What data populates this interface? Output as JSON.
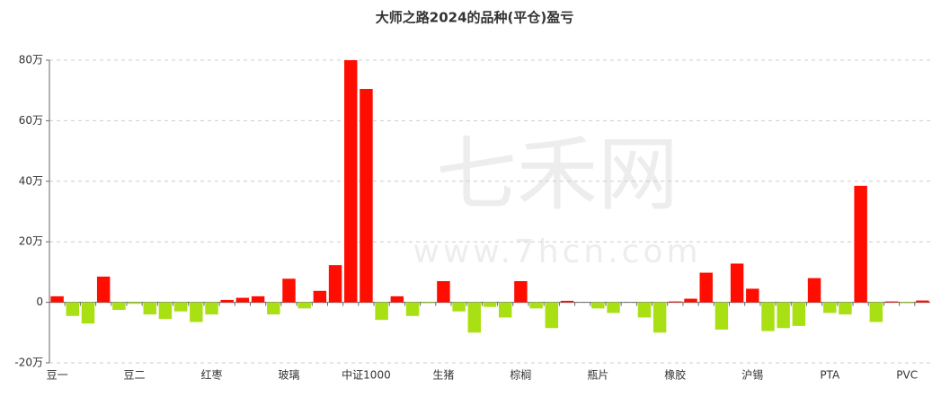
{
  "chart_data": {
    "type": "bar",
    "title": "大师之路2024的品种(平仓)盈亏",
    "watermark": [
      "七禾网",
      "www.7hcn.com"
    ],
    "categories": [
      "豆一",
      null,
      null,
      null,
      null,
      "豆二",
      null,
      null,
      null,
      null,
      "红枣",
      null,
      null,
      null,
      null,
      "玻璃",
      null,
      null,
      null,
      null,
      "中证1000",
      null,
      null,
      null,
      null,
      "生猪",
      null,
      null,
      null,
      null,
      "棕榈",
      null,
      null,
      null,
      null,
      "瓶片",
      null,
      null,
      null,
      null,
      "橡胶",
      null,
      null,
      null,
      null,
      "沪锡",
      null,
      null,
      null,
      null,
      "PTA",
      null,
      null,
      null,
      null,
      "PVC",
      null
    ],
    "values": [
      2,
      -4.5,
      -7,
      8.5,
      -2.5,
      -0.5,
      -4,
      -5.5,
      -3,
      -6.5,
      -4,
      0.8,
      1.5,
      2,
      -4,
      7.8,
      -2,
      3.8,
      12.3,
      80,
      70.5,
      -5.8,
      2,
      -4.5,
      -0.3,
      7,
      -3,
      -10,
      -1.5,
      -5,
      7,
      -2,
      -8.5,
      0.5,
      0,
      -2,
      -3.5,
      0,
      -5,
      -10,
      0.3,
      1.2,
      9.8,
      -9,
      12.8,
      4.5,
      -9.5,
      -8.5,
      -7.8,
      8,
      -3.5,
      -4,
      38.5,
      -6.5,
      0.3,
      -0.3,
      0.6
    ],
    "positive_color": "#ff0d00",
    "negative_color": "#a9e013",
    "ylim": [
      -20,
      80
    ],
    "yticks": [
      {
        "value": -20,
        "label": "-20万"
      },
      {
        "value": 0,
        "label": "0"
      },
      {
        "value": 20,
        "label": "20万"
      },
      {
        "value": 40,
        "label": "40万"
      },
      {
        "value": 60,
        "label": "60万"
      },
      {
        "value": 80,
        "label": "80万"
      }
    ],
    "grid": true
  }
}
